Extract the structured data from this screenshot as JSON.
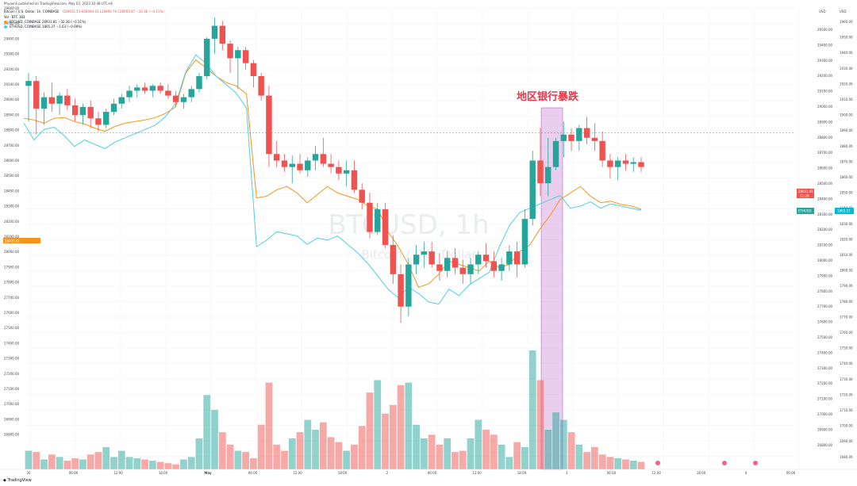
{
  "header": {
    "published": "Phyaonli published on TradingView.com, May 03, 2023 10:48 UTC+8",
    "symbol_line": "Bitcoin / U.S. Dollar, 1h, COINBASE",
    "ohlc": "O28933.53 H28944.63 L28490.74 C28903.87 −32.36 (−0.11%)",
    "vol_line": "Vol · BTC  183",
    "btc_line": "BTCUSD, COINBASE  28931.81  −32.36 (−0.11%)",
    "eth_line": "ETHUSD, COINBASE  1865.27  −1.63 (−0.09%)",
    "colors": {
      "up": "#26a69a",
      "down": "#ef5350",
      "btc_line": "#f7931a",
      "eth_line": "#4dd0e1",
      "highlight": "#ce93d8",
      "annotation": "#f23645"
    }
  },
  "annotation": "地区银行暴跌",
  "watermark": {
    "symbol": "BTCUSD, 1h",
    "name": "Bitcoin / U.S. Dollar"
  },
  "axes": {
    "unit_right": "USD",
    "unit_left": "USD",
    "btc_last": "28931.81",
    "btc_last_sub": "11:26",
    "eth_last": "1865.27",
    "left_last": "28431.81",
    "left_ticks": [
      "29600.00",
      "29500.00",
      "29400.00",
      "29300.00",
      "29200.00",
      "29100.00",
      "29000.00",
      "28900.00",
      "28800.00",
      "28700.00",
      "28600.00",
      "28500.00",
      "28400.00",
      "28300.00",
      "28200.00",
      "28100.00",
      "28000.00",
      "27900.00",
      "27800.00",
      "27700.00",
      "27600.00",
      "27500.00",
      "27400.00",
      "27300.00",
      "27200.00",
      "27100.00",
      "27000.00",
      "26900.00",
      "26800.00"
    ],
    "right_ticks_btc": [
      "29500.00",
      "29400.00",
      "29300.00",
      "29200.00",
      "29100.00",
      "29000.00",
      "28900.00",
      "28800.00",
      "28700.00",
      "28600.00",
      "28500.00",
      "28400.00",
      "28300.00",
      "28200.00",
      "28100.00",
      "28000.00",
      "27900.00",
      "27800.00",
      "27700.00",
      "27600.00",
      "27500.00",
      "27400.00",
      "27300.00",
      "27200.00",
      "27100.00",
      "27000.00",
      "26900.00",
      "26800.00"
    ],
    "right_ticks_eth": [
      "1960.00",
      "1950.00",
      "1940.00",
      "1930.00",
      "1920.00",
      "1910.00",
      "1900.00",
      "1890.00",
      "1880.00",
      "1870.00",
      "1860.00",
      "1850.00",
      "1840.00",
      "1830.00",
      "1820.00",
      "1810.00",
      "1800.00",
      "1790.00",
      "1780.00",
      "1770.00",
      "1760.00",
      "1750.00",
      "1740.00",
      "1730.00",
      "1720.00",
      "1710.00",
      "1700.00",
      "1690.00",
      "1680.00"
    ],
    "time_ticks": [
      "30",
      "06:00",
      "12:00",
      "18:00",
      "May",
      "06:00",
      "12:00",
      "18:00",
      "2",
      "06:00",
      "12:00",
      "18:00",
      "3",
      "06:00",
      "12:00",
      "18:00",
      "4",
      "06:00"
    ]
  },
  "footer": {
    "brand": "TradingView"
  },
  "chart_data": {
    "type": "candlestick",
    "title": "Bitcoin / U.S. Dollar, 1h, COINBASE",
    "candles": [
      [
        29220,
        29300,
        29000,
        29250
      ],
      [
        29250,
        29280,
        28920,
        29080
      ],
      [
        29080,
        29180,
        28980,
        29150
      ],
      [
        29150,
        29240,
        29060,
        29110
      ],
      [
        29110,
        29180,
        29040,
        29160
      ],
      [
        29160,
        29200,
        29070,
        29100
      ],
      [
        29100,
        29140,
        29000,
        29040
      ],
      [
        29040,
        29110,
        28980,
        29090
      ],
      [
        29090,
        29130,
        28960,
        29020
      ],
      [
        29020,
        29060,
        28940,
        28980
      ],
      [
        28980,
        29080,
        28960,
        29060
      ],
      [
        29060,
        29140,
        29040,
        29110
      ],
      [
        29110,
        29170,
        29080,
        29150
      ],
      [
        29150,
        29220,
        29120,
        29190
      ],
      [
        29190,
        29230,
        29150,
        29210
      ],
      [
        29210,
        29240,
        29170,
        29190
      ],
      [
        29190,
        29230,
        29150,
        29220
      ],
      [
        29220,
        29240,
        29170,
        29190
      ],
      [
        29190,
        29230,
        29140,
        29160
      ],
      [
        29160,
        29190,
        29090,
        29120
      ],
      [
        29120,
        29170,
        29080,
        29150
      ],
      [
        29150,
        29220,
        29120,
        29200
      ],
      [
        29200,
        29300,
        29180,
        29280
      ],
      [
        29280,
        29520,
        29260,
        29510
      ],
      [
        29510,
        29640,
        29420,
        29590
      ],
      [
        29590,
        29620,
        29440,
        29480
      ],
      [
        29480,
        29500,
        29300,
        29390
      ],
      [
        29390,
        29460,
        29200,
        29440
      ],
      [
        29440,
        29460,
        29320,
        29360
      ],
      [
        29360,
        29380,
        29210,
        29280
      ],
      [
        29280,
        29300,
        29130,
        29160
      ],
      [
        29160,
        29220,
        28720,
        28800
      ],
      [
        28800,
        28880,
        28720,
        28760
      ],
      [
        28760,
        28800,
        28690,
        28720
      ],
      [
        28720,
        28790,
        28620,
        28740
      ],
      [
        28740,
        28800,
        28680,
        28700
      ],
      [
        28700,
        28780,
        28660,
        28760
      ],
      [
        28760,
        28850,
        28700,
        28800
      ],
      [
        28800,
        28900,
        28720,
        28740
      ],
      [
        28740,
        28800,
        28680,
        28720
      ],
      [
        28720,
        28760,
        28640,
        28680
      ],
      [
        28680,
        28760,
        28600,
        28700
      ],
      [
        28700,
        28760,
        28560,
        28580
      ],
      [
        28580,
        28620,
        28460,
        28500
      ],
      [
        28500,
        28560,
        28280,
        28320
      ],
      [
        28320,
        28500,
        28300,
        28460
      ],
      [
        28460,
        28500,
        28220,
        28240
      ],
      [
        28240,
        28300,
        28000,
        28060
      ],
      [
        28060,
        28120,
        27760,
        27860
      ],
      [
        27860,
        28160,
        27800,
        28120
      ],
      [
        28120,
        28240,
        28060,
        28180
      ],
      [
        28180,
        28260,
        28100,
        28200
      ],
      [
        28200,
        28260,
        28100,
        28120
      ],
      [
        28120,
        28190,
        28020,
        28080
      ],
      [
        28080,
        28200,
        28040,
        28160
      ],
      [
        28160,
        28220,
        28060,
        28100
      ],
      [
        28100,
        28150,
        28000,
        28060
      ],
      [
        28060,
        28160,
        28000,
        28120
      ],
      [
        28120,
        28200,
        28060,
        28180
      ],
      [
        28180,
        28250,
        28100,
        28140
      ],
      [
        28140,
        28200,
        28040,
        28080
      ],
      [
        28080,
        28160,
        28020,
        28120
      ],
      [
        28120,
        28240,
        28080,
        28200
      ],
      [
        28200,
        28260,
        28040,
        28120
      ],
      [
        28120,
        28460,
        28100,
        28400
      ],
      [
        28400,
        28820,
        28360,
        28760
      ],
      [
        28760,
        28960,
        28540,
        28620
      ],
      [
        28620,
        28900,
        28540,
        28720
      ],
      [
        28720,
        28900,
        28700,
        28880
      ],
      [
        28880,
        29000,
        28780,
        28920
      ],
      [
        28920,
        28960,
        28820,
        28880
      ],
      [
        28880,
        28980,
        28820,
        28960
      ],
      [
        28960,
        29030,
        28860,
        28900
      ],
      [
        28900,
        28990,
        28820,
        28880
      ],
      [
        28880,
        28940,
        28720,
        28760
      ],
      [
        28760,
        28800,
        28650,
        28720
      ],
      [
        28720,
        28780,
        28640,
        28760
      ],
      [
        28760,
        28800,
        28700,
        28740
      ],
      [
        28740,
        28780,
        28690,
        28750
      ],
      [
        28750,
        28780,
        28690,
        28720
      ]
    ],
    "volume": [
      15,
      14,
      8,
      12,
      10,
      7,
      9,
      8,
      12,
      14,
      18,
      10,
      15,
      10,
      9,
      8,
      7,
      6,
      5,
      4,
      8,
      10,
      25,
      60,
      48,
      30,
      20,
      15,
      14,
      9,
      36,
      70,
      20,
      15,
      25,
      30,
      40,
      32,
      38,
      26,
      22,
      15,
      20,
      35,
      62,
      72,
      45,
      52,
      68,
      70,
      36,
      25,
      28,
      20,
      25,
      14,
      15,
      25,
      40,
      32,
      28,
      20,
      10,
      22,
      18,
      96,
      72,
      32,
      46,
      40,
      30,
      20,
      14,
      18,
      12,
      10,
      9,
      8,
      7,
      6
    ],
    "btcusd_line": [
      29020,
      29010,
      28990,
      29020,
      29025,
      29000,
      28985,
      28960,
      28940,
      28970,
      28990,
      29000,
      29010,
      29025,
      29050,
      29090,
      29300,
      29380,
      29330,
      29280,
      29240,
      29220,
      29170,
      28530,
      28540,
      28580,
      28600,
      28560,
      28500,
      28550,
      28600,
      28560,
      28540,
      28520,
      28480,
      28460,
      28320,
      28230,
      28120,
      27980,
      28000,
      28060,
      28140,
      28120,
      28100,
      28080,
      28140,
      28100,
      28120,
      28200,
      28240,
      28340,
      28420,
      28520,
      28560,
      28600,
      28540,
      28500,
      28510,
      28490,
      28480,
      28460
    ],
    "ethusd_line": [
      1906,
      1898,
      1903,
      1904,
      1900,
      1895,
      1898,
      1896,
      1894,
      1897,
      1899,
      1901,
      1903,
      1905,
      1909,
      1915,
      1930,
      1938,
      1934,
      1928,
      1924,
      1920,
      1913,
      1848,
      1851,
      1855,
      1854,
      1853,
      1849,
      1852,
      1851,
      1853,
      1849,
      1845,
      1840,
      1834,
      1828,
      1824,
      1829,
      1826,
      1822,
      1821,
      1828,
      1825,
      1830,
      1833,
      1836,
      1848,
      1858,
      1864,
      1866,
      1868,
      1870,
      1872,
      1866,
      1867,
      1869,
      1866,
      1868,
      1867,
      1866,
      1865
    ]
  }
}
